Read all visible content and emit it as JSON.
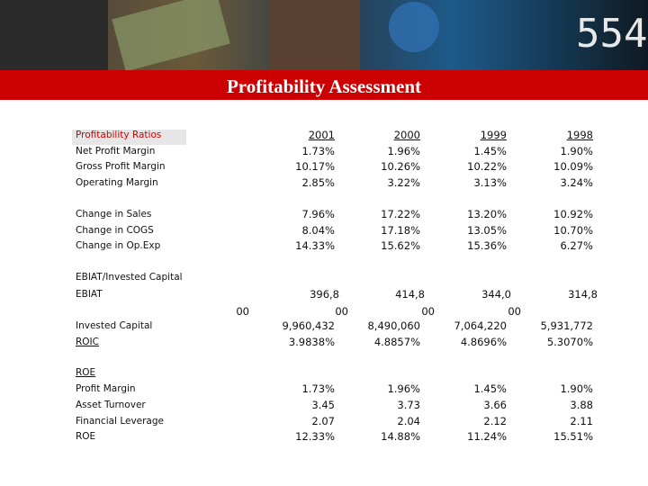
{
  "banner": {
    "title": "Profitability Assessment"
  },
  "table": {
    "header": {
      "label": "Profitability Ratios",
      "years": [
        "2001",
        "2000",
        "1999",
        "1998"
      ]
    },
    "rows": [
      {
        "label": "Net Profit Margin",
        "values": [
          "1.73%",
          "1.96%",
          "1.45%",
          "1.90%"
        ]
      },
      {
        "label": "Gross Profit Margin",
        "values": [
          "10.17%",
          "10.26%",
          "10.22%",
          "10.09%"
        ]
      },
      {
        "label": "Operating Margin",
        "values": [
          "2.85%",
          "3.22%",
          "3.13%",
          "3.24%"
        ]
      },
      {
        "label": "Change in Sales",
        "values": [
          "7.96%",
          "17.22%",
          "13.20%",
          "10.92%"
        ]
      },
      {
        "label": "Change in COGS",
        "values": [
          "8.04%",
          "17.18%",
          "13.05%",
          "10.70%"
        ]
      },
      {
        "label": "Change in Op.Exp",
        "values": [
          "14.33%",
          "15.62%",
          "15.36%",
          "6.27%"
        ]
      },
      {
        "label": "EBIAT/Invested Capital"
      },
      {
        "label": "EBIAT",
        "values": [
          [
            "396,8",
            "00"
          ],
          [
            "414,8",
            "00"
          ],
          [
            "344,0",
            "00"
          ],
          [
            "314,8",
            "00"
          ]
        ]
      },
      {
        "label": "Invested Capital",
        "values": [
          "9,960,432",
          "8,490,060",
          "7,064,220",
          "5,931,772"
        ]
      },
      {
        "label": "ROIC",
        "underline": true,
        "values": [
          "3.9838%",
          "4.8857%",
          "4.8696%",
          "5.3070%"
        ]
      },
      {
        "label": "ROE",
        "underline": true
      },
      {
        "label": "Profit Margin",
        "values": [
          "1.73%",
          "1.96%",
          "1.45%",
          "1.90%"
        ]
      },
      {
        "label": "Asset Turnover",
        "values": [
          "3.45",
          "3.73",
          "3.66",
          "3.88"
        ]
      },
      {
        "label": "Financial Leverage",
        "values": [
          "2.07",
          "2.04",
          "2.12",
          "2.11"
        ]
      },
      {
        "label": "ROE",
        "values": [
          "12.33%",
          "14.88%",
          "11.24%",
          "15.51%"
        ]
      }
    ]
  }
}
